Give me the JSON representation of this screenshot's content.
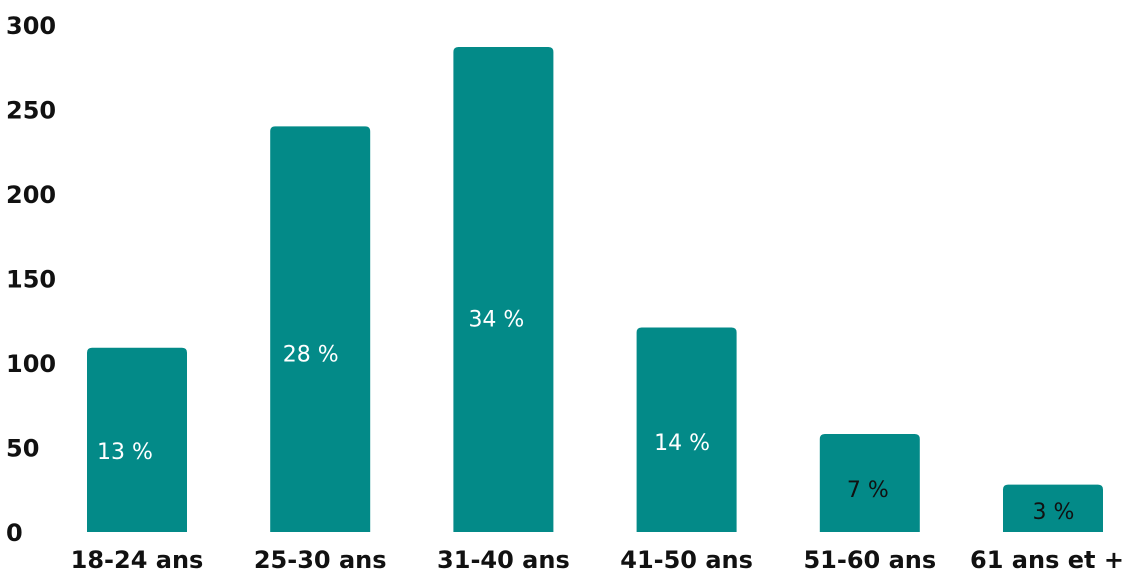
{
  "chart_data": {
    "type": "bar",
    "categories": [
      "18-24 ans",
      "25-30 ans",
      "31-40 ans",
      "41-50 ans",
      "51-60 ans",
      "61 ans et +"
    ],
    "values": [
      109,
      240,
      287,
      121,
      58,
      28
    ],
    "data_labels": [
      "13 %",
      "28 %",
      "34 %",
      "14 %",
      "7 %",
      "3 %"
    ],
    "ylim": [
      0,
      300
    ],
    "yticks": [
      0,
      50,
      100,
      150,
      200,
      250,
      300
    ],
    "grid": false,
    "legend": "none",
    "bar_color": "#038a88",
    "label_colors": [
      "#ffffff",
      "#ffffff",
      "#ffffff",
      "#ffffff",
      "#111111",
      "#111111"
    ]
  }
}
